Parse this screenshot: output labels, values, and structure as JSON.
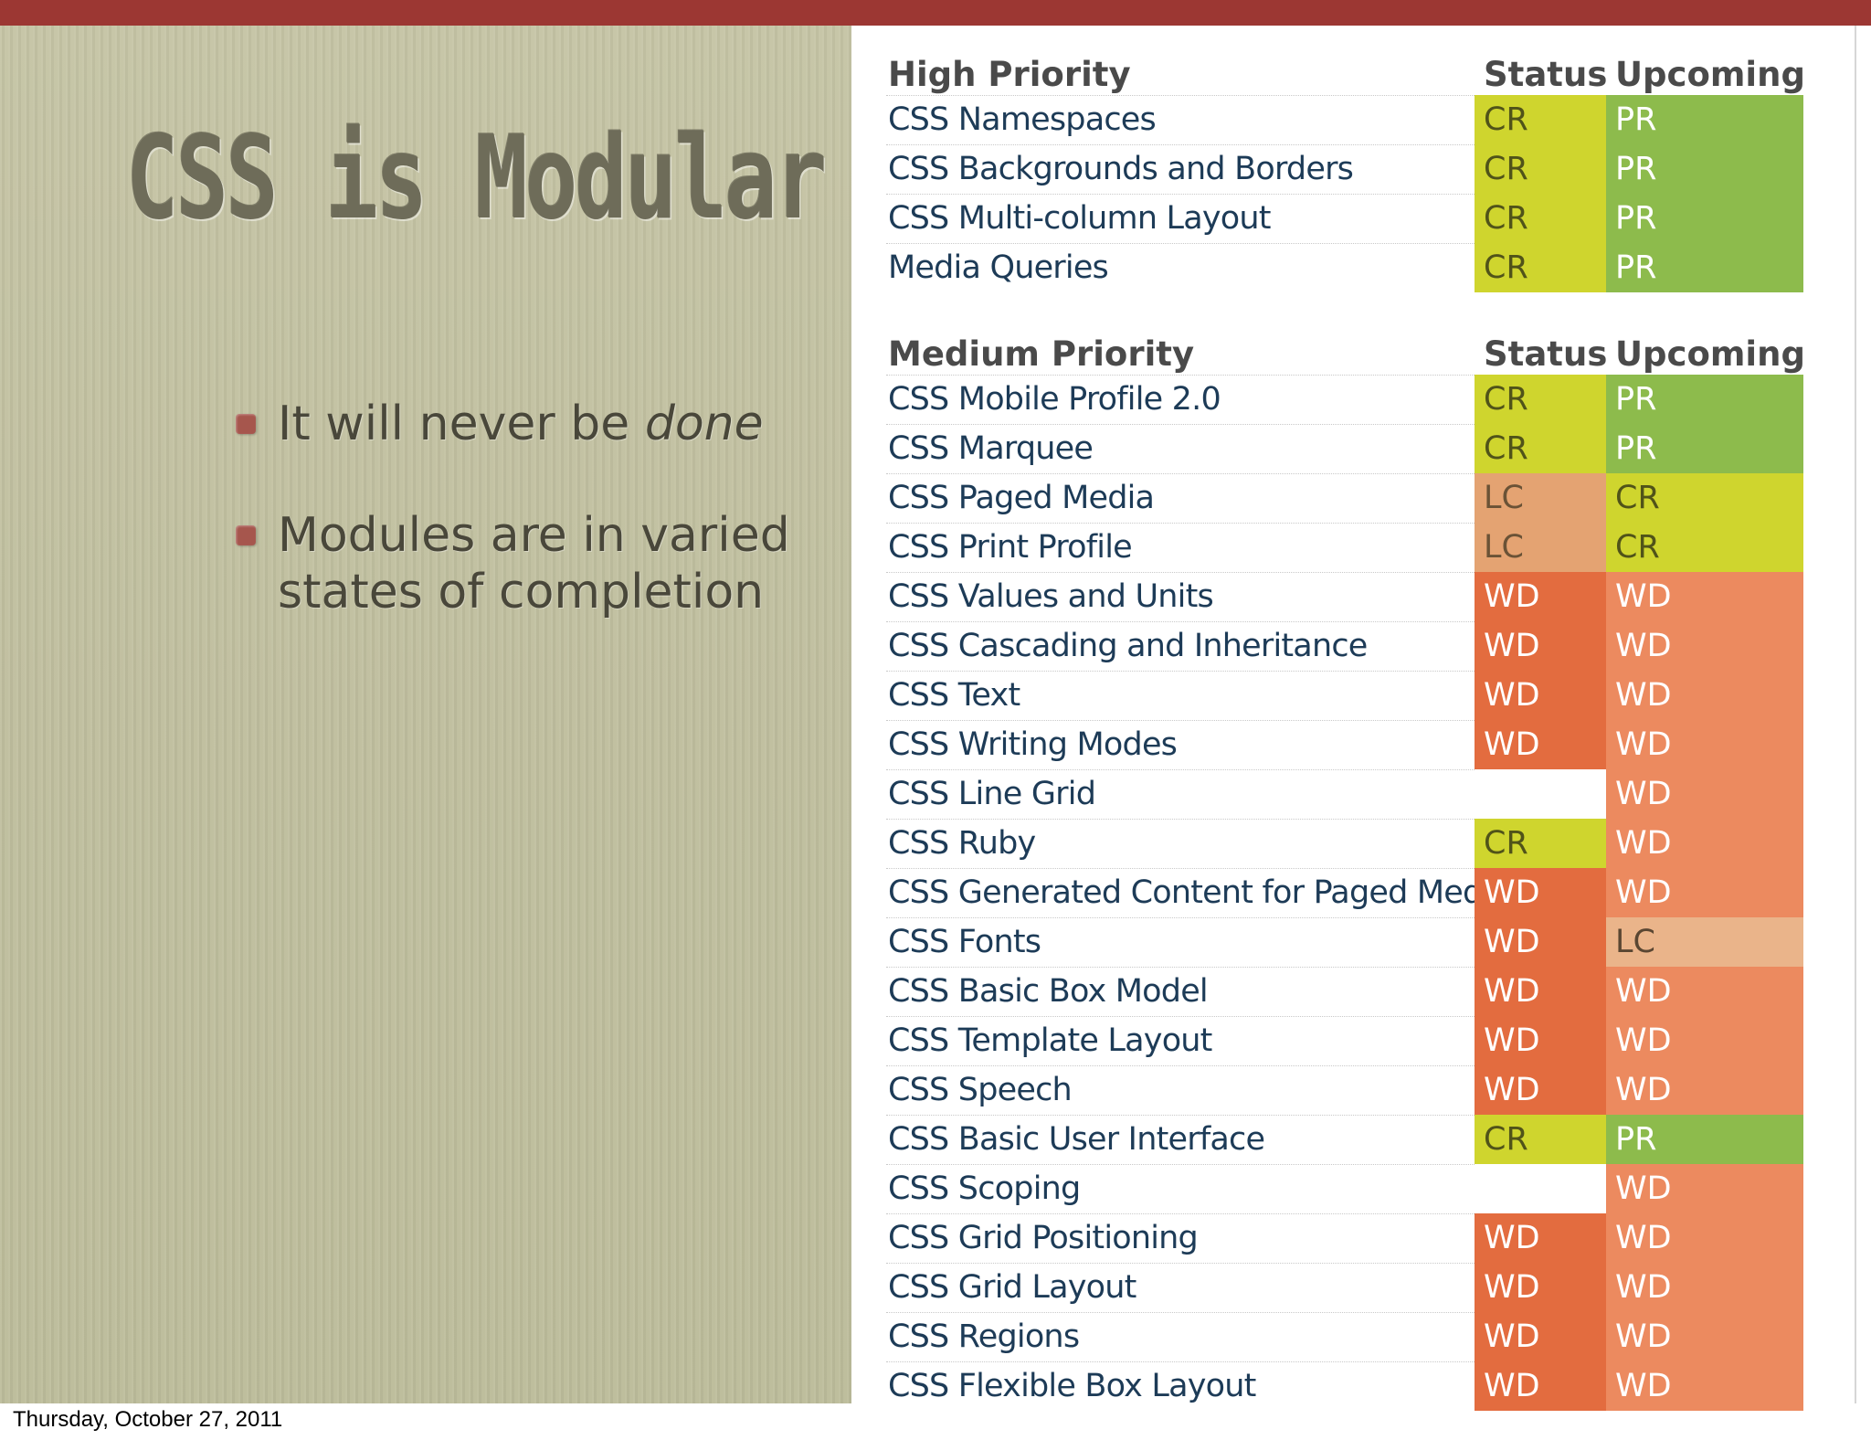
{
  "slide": {
    "title": "CSS is Modular",
    "bullets": [
      {
        "text": "It will never be ",
        "emphasis": "done"
      },
      {
        "text": "Modules are in varied states of completion",
        "emphasis": ""
      }
    ],
    "footer_date": "Thursday, October 27, 2011"
  },
  "colors": {
    "CR": {
      "bg": "#cfd52e",
      "fg": "#505319"
    },
    "PR": {
      "bg": "#8dbb4c",
      "fg": "#ffffff"
    },
    "LC": {
      "bg": "#e4a372",
      "fg": "#6a5236"
    },
    "WD": {
      "bg": "#e36c3f",
      "fg": "#ffffff"
    },
    "WD_upcoming": {
      "bg": "#ec8a5f",
      "fg": "#ffffff"
    },
    "LC_upcoming": {
      "bg": "#eab48a",
      "fg": "#5a4632"
    },
    "none": {
      "bg": "#ffffff",
      "fg": "#ffffff"
    }
  },
  "table": {
    "high": {
      "heading": "High Priority",
      "status_label": "Status",
      "upcoming_label": "Upcoming",
      "rows": [
        {
          "name": "CSS Namespaces",
          "status": "CR",
          "upcoming": "PR"
        },
        {
          "name": "CSS Backgrounds and Borders",
          "status": "CR",
          "upcoming": "PR"
        },
        {
          "name": "CSS Multi-column Layout",
          "status": "CR",
          "upcoming": "PR"
        },
        {
          "name": "Media Queries",
          "status": "CR",
          "upcoming": "PR"
        }
      ]
    },
    "medium": {
      "heading": "Medium Priority",
      "status_label": "Status",
      "upcoming_label": "Upcoming",
      "rows": [
        {
          "name": "CSS Mobile Profile 2.0",
          "status": "CR",
          "upcoming": "PR"
        },
        {
          "name": "CSS Marquee",
          "status": "CR",
          "upcoming": "PR"
        },
        {
          "name": "CSS Paged Media",
          "status": "LC",
          "upcoming": "CR"
        },
        {
          "name": "CSS Print Profile",
          "status": "LC",
          "upcoming": "CR"
        },
        {
          "name": "CSS Values and Units",
          "status": "WD",
          "upcoming": "WD"
        },
        {
          "name": "CSS Cascading and Inheritance",
          "status": "WD",
          "upcoming": "WD"
        },
        {
          "name": "CSS Text",
          "status": "WD",
          "upcoming": "WD"
        },
        {
          "name": "CSS Writing Modes",
          "status": "WD",
          "upcoming": "WD"
        },
        {
          "name": "CSS Line Grid",
          "status": "",
          "upcoming": "WD"
        },
        {
          "name": "CSS Ruby",
          "status": "CR",
          "upcoming": "WD"
        },
        {
          "name": "CSS Generated Content for Paged Media",
          "status": "WD",
          "upcoming": "WD"
        },
        {
          "name": "CSS Fonts",
          "status": "WD",
          "upcoming": "LC"
        },
        {
          "name": "CSS Basic Box Model",
          "status": "WD",
          "upcoming": "WD"
        },
        {
          "name": "CSS Template Layout",
          "status": "WD",
          "upcoming": "WD"
        },
        {
          "name": "CSS Speech",
          "status": "WD",
          "upcoming": "WD"
        },
        {
          "name": "CSS Basic User Interface",
          "status": "CR",
          "upcoming": "PR"
        },
        {
          "name": "CSS Scoping",
          "status": "",
          "upcoming": "WD"
        },
        {
          "name": "CSS Grid Positioning",
          "status": "WD",
          "upcoming": "WD"
        },
        {
          "name": "CSS Grid Layout",
          "status": "WD",
          "upcoming": "WD"
        },
        {
          "name": "CSS Regions",
          "status": "WD",
          "upcoming": "WD"
        },
        {
          "name": "CSS Flexible Box Layout",
          "status": "WD",
          "upcoming": "WD"
        }
      ]
    }
  }
}
